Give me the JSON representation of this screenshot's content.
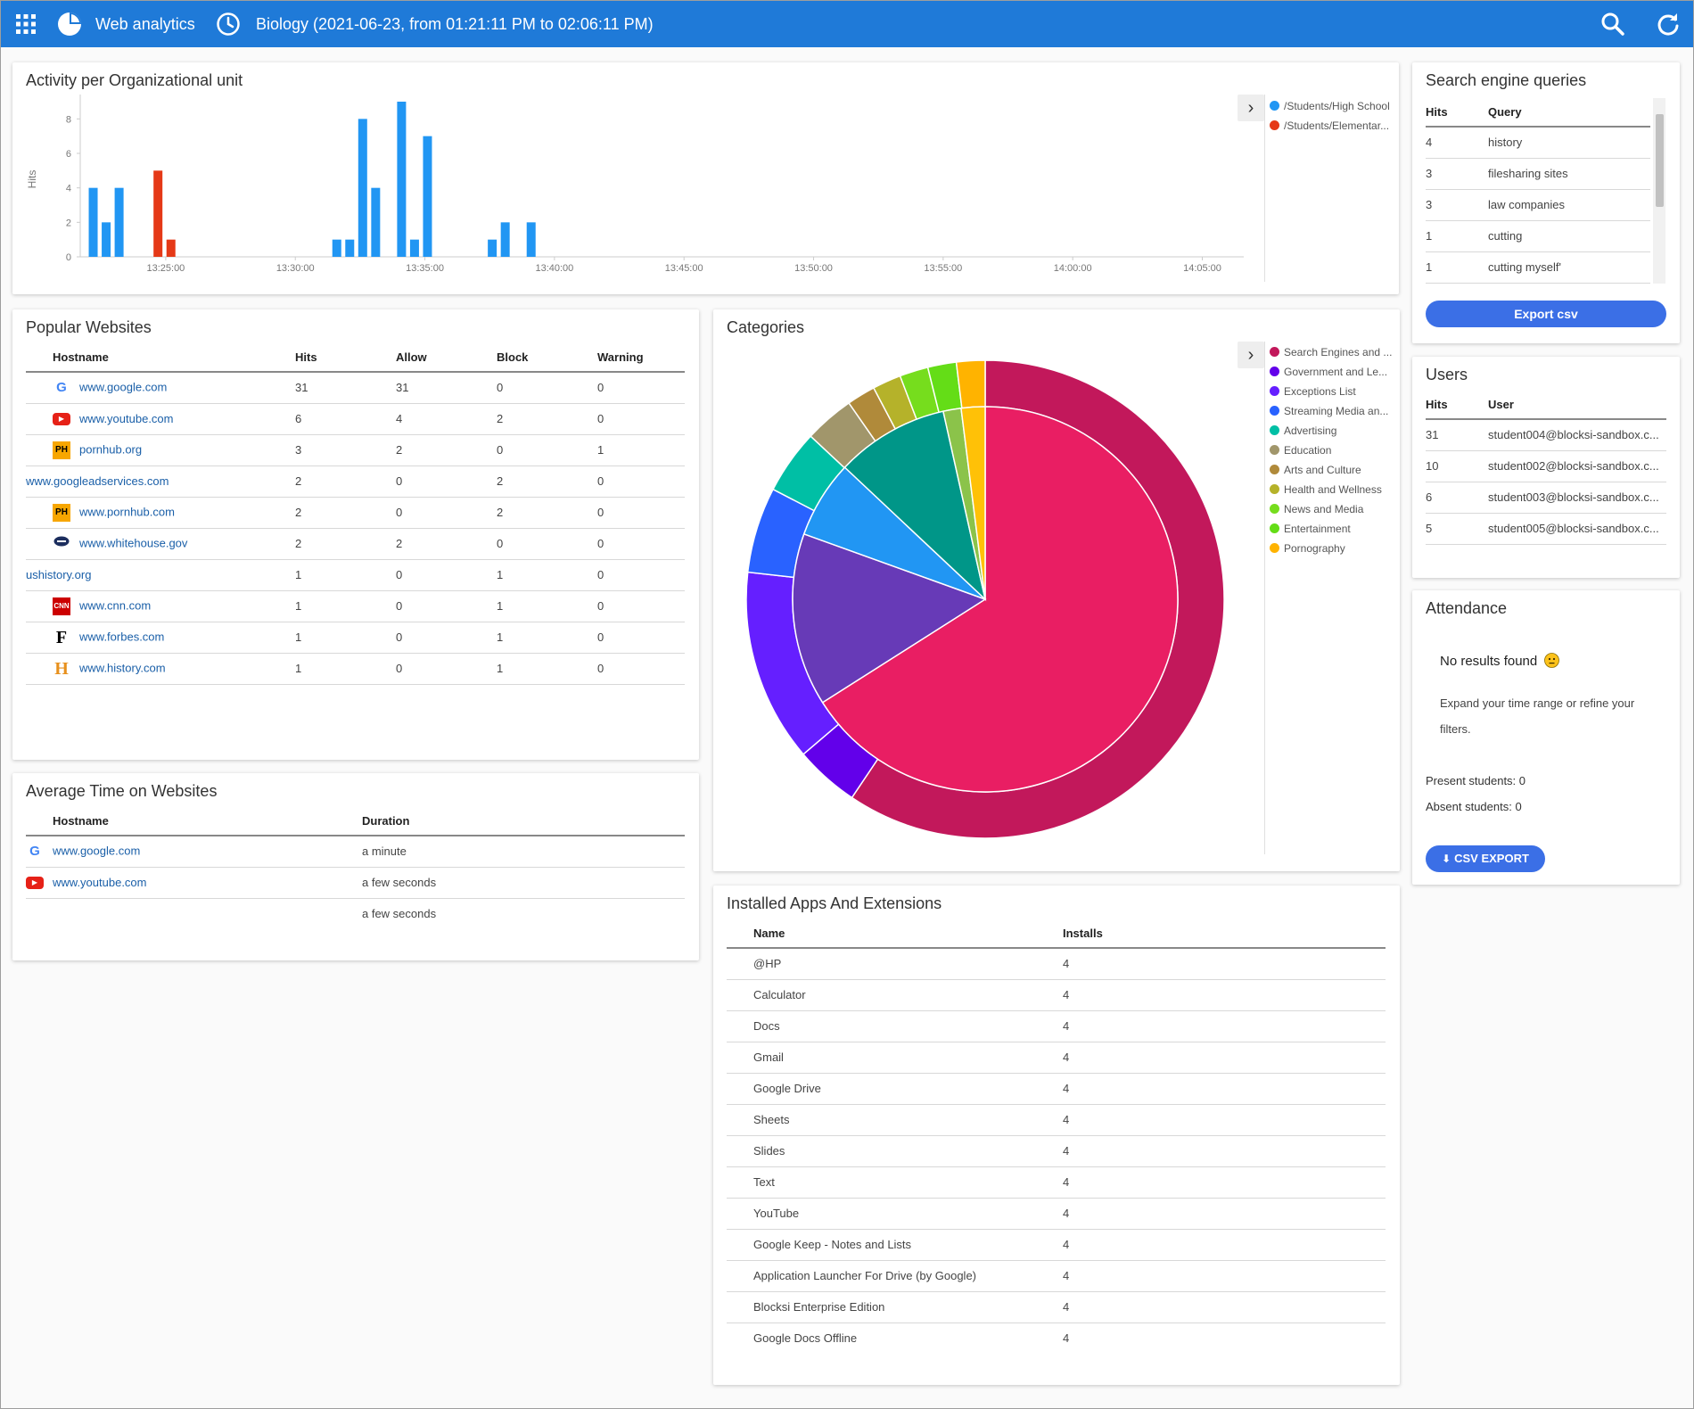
{
  "header": {
    "app_title": "Web analytics",
    "session": "Biology (2021-06-23, from 01:21:11 PM to 02:06:11 PM)"
  },
  "colors": {
    "topbar": "#1f7ad8",
    "link": "#1a5fa8",
    "primary_button": "#3b6fe6"
  },
  "activity": {
    "title": "Activity per Organizational unit",
    "chart_data": {
      "type": "bar",
      "ylabel": "Hits",
      "ylim": [
        0,
        9
      ],
      "yticks": [
        "0",
        "2",
        "4",
        "6",
        "8"
      ],
      "xticks": [
        "13:25:00",
        "13:30:00",
        "13:35:00",
        "13:40:00",
        "13:45:00",
        "13:50:00",
        "13:55:00",
        "14:00:00",
        "14:05:00"
      ],
      "xlim_minutes": [
        -3.3,
        41.6
      ],
      "series": [
        {
          "name": "/Students/High School",
          "color": "#2196f3",
          "points": [
            [
              -2.8,
              4
            ],
            [
              -2.3,
              2
            ],
            [
              -1.8,
              4
            ],
            [
              6.6,
              1
            ],
            [
              7.1,
              1
            ],
            [
              7.6,
              8
            ],
            [
              8.1,
              4
            ],
            [
              9.1,
              9
            ],
            [
              9.6,
              1
            ],
            [
              10.1,
              7
            ],
            [
              12.6,
              1
            ],
            [
              13.1,
              2
            ],
            [
              14.1,
              2
            ]
          ]
        },
        {
          "name": "/Students/Elementar...",
          "color": "#e53917",
          "points": [
            [
              -0.3,
              5
            ],
            [
              0.2,
              1
            ]
          ]
        }
      ]
    }
  },
  "search_queries": {
    "title": "Search engine queries",
    "headers": [
      "Hits",
      "Query"
    ],
    "rows": [
      [
        "4",
        "history"
      ],
      [
        "3",
        "filesharing sites"
      ],
      [
        "3",
        "law companies"
      ],
      [
        "1",
        "cutting"
      ],
      [
        "1",
        "cutting myself'"
      ]
    ],
    "export_label": "Export csv"
  },
  "popular": {
    "title": "Popular Websites",
    "headers": [
      "Hostname",
      "Hits",
      "Allow",
      "Block",
      "Warning"
    ],
    "rows": [
      {
        "icon": "google-icon",
        "host": "www.google.com",
        "hits": "31",
        "allow": "31",
        "block": "0",
        "warning": "0"
      },
      {
        "icon": "youtube-icon",
        "host": "www.youtube.com",
        "hits": "6",
        "allow": "4",
        "block": "2",
        "warning": "0"
      },
      {
        "icon": "ph-icon",
        "host": "pornhub.org",
        "hits": "3",
        "allow": "2",
        "block": "0",
        "warning": "1"
      },
      {
        "icon": "",
        "host": "www.googleadservices.com",
        "hits": "2",
        "allow": "0",
        "block": "2",
        "warning": "0"
      },
      {
        "icon": "ph-icon",
        "host": "www.pornhub.com",
        "hits": "2",
        "allow": "0",
        "block": "2",
        "warning": "0"
      },
      {
        "icon": "whitehouse-icon",
        "host": "www.whitehouse.gov",
        "hits": "2",
        "allow": "2",
        "block": "0",
        "warning": "0"
      },
      {
        "icon": "",
        "host": "ushistory.org",
        "hits": "1",
        "allow": "0",
        "block": "1",
        "warning": "0"
      },
      {
        "icon": "cnn-icon",
        "host": "www.cnn.com",
        "hits": "1",
        "allow": "0",
        "block": "1",
        "warning": "0"
      },
      {
        "icon": "forbes-icon",
        "host": "www.forbes.com",
        "hits": "1",
        "allow": "0",
        "block": "1",
        "warning": "0"
      },
      {
        "icon": "history-icon",
        "host": "www.history.com",
        "hits": "1",
        "allow": "0",
        "block": "1",
        "warning": "0"
      }
    ]
  },
  "avg_time": {
    "title": "Average Time on Websites",
    "headers": [
      "Hostname",
      "Duration"
    ],
    "rows": [
      {
        "icon": "google-icon",
        "host": "www.google.com",
        "duration": "a minute"
      },
      {
        "icon": "youtube-icon",
        "host": "www.youtube.com",
        "duration": "a few seconds"
      },
      {
        "icon": "",
        "host": "",
        "duration": "a few seconds"
      }
    ]
  },
  "categories": {
    "title": "Categories",
    "chart_data": {
      "type": "pie",
      "series": [
        {
          "name": "outer",
          "slices": [
            {
              "label": "Search Engines and ...",
              "value": 61.5,
              "color": "#c2185b"
            },
            {
              "label": "Government and Le...",
              "value": 4.5,
              "color": "#6200ea"
            },
            {
              "label": "Exceptions List",
              "value": 13.5,
              "color": "#651fff"
            },
            {
              "label": "Streaming Media an...",
              "value": 6.0,
              "color": "#2962ff"
            },
            {
              "label": "Advertising",
              "value": 4.5,
              "color": "#00bfa5"
            },
            {
              "label": "Education",
              "value": 3.5,
              "color": "#a1966b"
            },
            {
              "label": "Arts and Culture",
              "value": 2.0,
              "color": "#b08a3a"
            },
            {
              "label": "Health and Wellness",
              "value": 2.0,
              "color": "#b5b22a"
            },
            {
              "label": "News and Media",
              "value": 2.0,
              "color": "#76dd1d"
            },
            {
              "label": "Entertainment",
              "value": 2.0,
              "color": "#64dd17"
            },
            {
              "label": "Pornography",
              "value": 2.0,
              "color": "#ffb300"
            }
          ]
        },
        {
          "name": "inner",
          "slices": [
            {
              "value": 66.0,
              "color": "#e91e63"
            },
            {
              "value": 14.5,
              "color": "#673ab7"
            },
            {
              "value": 6.5,
              "color": "#2196f3"
            },
            {
              "value": 9.5,
              "color": "#009688"
            },
            {
              "value": 1.5,
              "color": "#8bc34a"
            },
            {
              "value": 2.0,
              "color": "#ffc107"
            }
          ]
        }
      ]
    },
    "legend": [
      {
        "label": "Search Engines and ...",
        "color": "#c2185b"
      },
      {
        "label": "Government and Le...",
        "color": "#6200ea"
      },
      {
        "label": "Exceptions List",
        "color": "#651fff"
      },
      {
        "label": "Streaming Media an...",
        "color": "#2962ff"
      },
      {
        "label": "Advertising",
        "color": "#00bfa5"
      },
      {
        "label": "Education",
        "color": "#a1966b"
      },
      {
        "label": "Arts and Culture",
        "color": "#b08a3a"
      },
      {
        "label": "Health and Wellness",
        "color": "#b5b22a"
      },
      {
        "label": "News and Media",
        "color": "#76dd1d"
      },
      {
        "label": "Entertainment",
        "color": "#64dd17"
      },
      {
        "label": "Pornography",
        "color": "#ffb300"
      }
    ]
  },
  "users": {
    "title": "Users",
    "headers": [
      "Hits",
      "User"
    ],
    "rows": [
      [
        "31",
        "student004@blocksi-sandbox.c..."
      ],
      [
        "10",
        "student002@blocksi-sandbox.c..."
      ],
      [
        "6",
        "student003@blocksi-sandbox.c..."
      ],
      [
        "5",
        "student005@blocksi-sandbox.c..."
      ]
    ]
  },
  "attendance": {
    "title": "Attendance",
    "no_results": "No results found",
    "hint": "Expand your time range or refine your filters.",
    "present": "Present students: 0",
    "absent": "Absent students: 0",
    "export_label": "CSV EXPORT"
  },
  "apps": {
    "title": "Installed Apps And Extensions",
    "headers": [
      "Name",
      "Installs"
    ],
    "rows": [
      [
        "@HP",
        "4"
      ],
      [
        "Calculator",
        "4"
      ],
      [
        "Docs",
        "4"
      ],
      [
        "Gmail",
        "4"
      ],
      [
        "Google Drive",
        "4"
      ],
      [
        "Sheets",
        "4"
      ],
      [
        "Slides",
        "4"
      ],
      [
        "Text",
        "4"
      ],
      [
        "YouTube",
        "4"
      ],
      [
        "Google Keep - Notes and Lists",
        "4"
      ],
      [
        "Application Launcher For Drive (by Google)",
        "4"
      ],
      [
        "Blocksi Enterprise Edition",
        "4"
      ],
      [
        "Google Docs Offline",
        "4"
      ]
    ]
  }
}
